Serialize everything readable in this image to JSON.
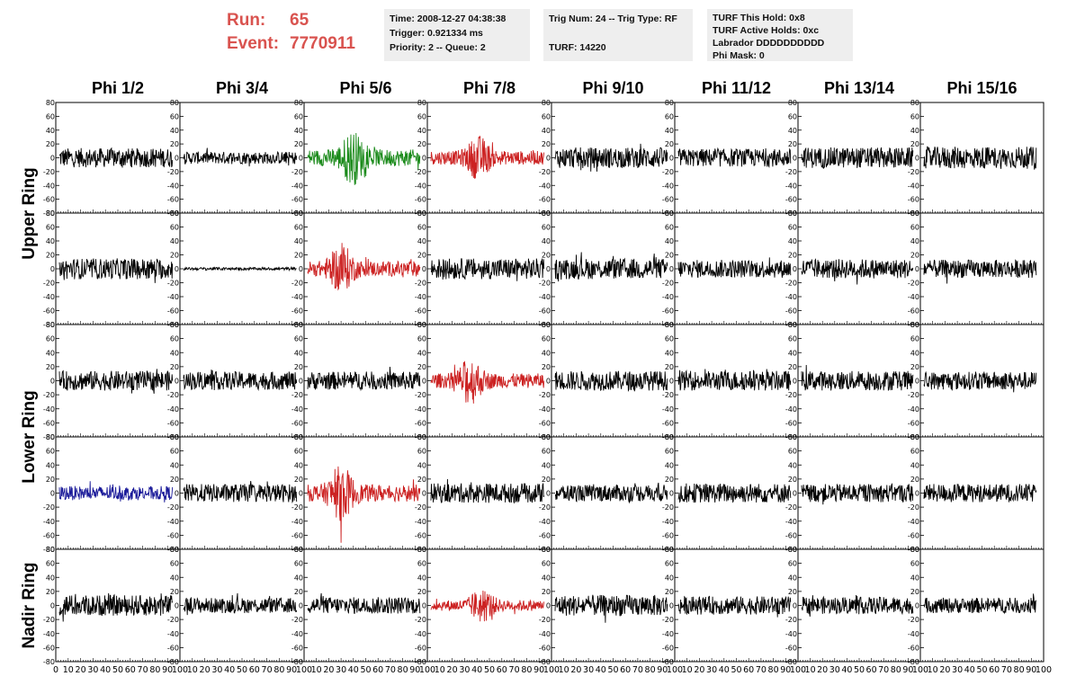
{
  "header": {
    "run_label": "Run:",
    "run_value": "65",
    "event_label": "Event:",
    "event_value": "7770911"
  },
  "info_boxes": [
    {
      "lines": [
        "Time: 2008-12-27 04:38:38",
        "Trigger: 0.921334 ms",
        "Priority: 2 -- Queue: 2"
      ]
    },
    {
      "lines": [
        "Trig Num: 24 -- Trig Type: RF",
        "",
        "TURF: 14220"
      ]
    },
    {
      "lines": [
        "TURF This Hold: 0x8",
        "TURF Active Holds: 0xc",
        "Labrador DDDDDDDDDD",
        "Phi Mask: 0"
      ]
    }
  ],
  "chart_data": {
    "type": "line",
    "column_titles": [
      "Phi 1/2",
      "Phi 3/4",
      "Phi 5/6",
      "Phi 7/8",
      "Phi 9/10",
      "Phi 11/12",
      "Phi 13/14",
      "Phi 15/16"
    ],
    "row_labels": [
      "Upper Ring",
      "Lower Ring",
      "Nadir Ring"
    ],
    "xlim": [
      0,
      100
    ],
    "ylim": [
      -80,
      80
    ],
    "yticks": [
      80,
      60,
      40,
      20,
      0,
      -20,
      -40,
      -60,
      -80
    ],
    "xtick_labels": [
      "0",
      "10",
      "20",
      "30",
      "40",
      "50",
      "60",
      "70",
      "80",
      "90",
      "100"
    ],
    "grid": false,
    "colors": {
      "default": "#000000",
      "green": "#1a8a1a",
      "red": "#cc2222",
      "blue": "#1a1a99"
    },
    "panels": [
      [
        {
          "amp": 14,
          "color": "default"
        },
        {
          "amp": 9,
          "color": "default"
        },
        {
          "amp": 22,
          "color": "green",
          "burst": 0.4
        },
        {
          "amp": 18,
          "color": "red",
          "burst": 0.42
        },
        {
          "amp": 15,
          "color": "default"
        },
        {
          "amp": 13,
          "color": "default"
        },
        {
          "amp": 15,
          "color": "default"
        },
        {
          "amp": 16,
          "color": "default"
        }
      ],
      [
        {
          "amp": 15,
          "color": "default"
        },
        {
          "amp": 2,
          "color": "default"
        },
        {
          "amp": 20,
          "color": "red",
          "burst": 0.3
        },
        {
          "amp": 15,
          "color": "default"
        },
        {
          "amp": 15,
          "color": "default"
        },
        {
          "amp": 13,
          "color": "default"
        },
        {
          "amp": 14,
          "color": "default"
        },
        {
          "amp": 13,
          "color": "default"
        }
      ],
      [
        {
          "amp": 14,
          "color": "default"
        },
        {
          "amp": 13,
          "color": "default"
        },
        {
          "amp": 13,
          "color": "default"
        },
        {
          "amp": 19,
          "color": "red",
          "burst": 0.35
        },
        {
          "amp": 14,
          "color": "default"
        },
        {
          "amp": 14,
          "color": "default"
        },
        {
          "amp": 14,
          "color": "default"
        },
        {
          "amp": 13,
          "color": "default"
        }
      ],
      [
        {
          "amp": 10,
          "color": "blue"
        },
        {
          "amp": 13,
          "color": "default"
        },
        {
          "amp": 22,
          "color": "red",
          "burst": 0.3
        },
        {
          "amp": 14,
          "color": "default"
        },
        {
          "amp": 12,
          "color": "default"
        },
        {
          "amp": 14,
          "color": "default"
        },
        {
          "amp": 13,
          "color": "default"
        },
        {
          "amp": 13,
          "color": "default"
        }
      ],
      [
        {
          "amp": 15,
          "color": "default"
        },
        {
          "amp": 11,
          "color": "default"
        },
        {
          "amp": 12,
          "color": "default"
        },
        {
          "amp": 14,
          "color": "red",
          "burst": 0.45
        },
        {
          "amp": 15,
          "color": "default"
        },
        {
          "amp": 13,
          "color": "default"
        },
        {
          "amp": 12,
          "color": "default"
        },
        {
          "amp": 11,
          "color": "default"
        }
      ]
    ]
  }
}
